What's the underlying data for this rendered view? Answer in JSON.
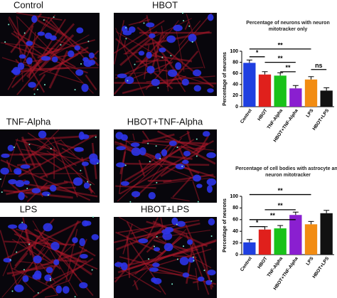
{
  "panels": [
    "Control",
    "HBOT",
    "TNF-Alpha",
    "HBOT+TNF-Alpha",
    "LPS",
    "HBOT+LPS"
  ],
  "chart_data": [
    {
      "type": "bar",
      "title": "Percentage of neurons with neuron mitotracker only",
      "y_label": "Percentage of neurons",
      "categories": [
        "Control",
        "HBOT",
        "TNF-Alpha",
        "HBOT+TNF-Alpha",
        "LPS",
        "HBOT+LPS"
      ],
      "values": [
        79,
        58,
        56,
        33,
        49,
        29
      ],
      "colors": [
        "#1f3fe0",
        "#e0201c",
        "#19c21a",
        "#8a1fd0",
        "#f28c12",
        "#111111"
      ],
      "ylim": [
        0,
        100
      ],
      "yticks": [
        0,
        20,
        40,
        60,
        80,
        100
      ],
      "annotations": [
        {
          "from": 0,
          "to": 1,
          "label": "*",
          "y": 90
        },
        {
          "from": 0,
          "to": 4,
          "label": "**",
          "y": 104
        },
        {
          "from": 1,
          "to": 3,
          "label": "**",
          "y": 80
        },
        {
          "from": 2,
          "to": 3,
          "label": "**",
          "y": 63
        },
        {
          "from": 4,
          "to": 5,
          "label": "ns",
          "y": 67
        }
      ]
    },
    {
      "type": "bar",
      "title": "Percentage of cell bodies with astrocyte and neuron mitotracker",
      "y_label": "Percentage of neurons",
      "categories": [
        "Control",
        "HBOT",
        "TNF-Alpha",
        "HBOT+TNF-Alpha",
        "LPS",
        "HBOT+LPS"
      ],
      "values": [
        21,
        43,
        45,
        68,
        52,
        71
      ],
      "colors": [
        "#1f3fe0",
        "#e0201c",
        "#19c21a",
        "#8a1fd0",
        "#f28c12",
        "#111111"
      ],
      "ylim": [
        0,
        100
      ],
      "yticks": [
        0,
        20,
        40,
        60,
        80,
        100
      ],
      "annotations": [
        {
          "from": 0,
          "to": 1,
          "label": "*",
          "y": 48
        },
        {
          "from": 0,
          "to": 3,
          "label": "**",
          "y": 60
        },
        {
          "from": 1,
          "to": 3,
          "label": "**",
          "y": 77
        },
        {
          "from": 0,
          "to": 4,
          "label": "**",
          "y": 103
        }
      ]
    }
  ]
}
